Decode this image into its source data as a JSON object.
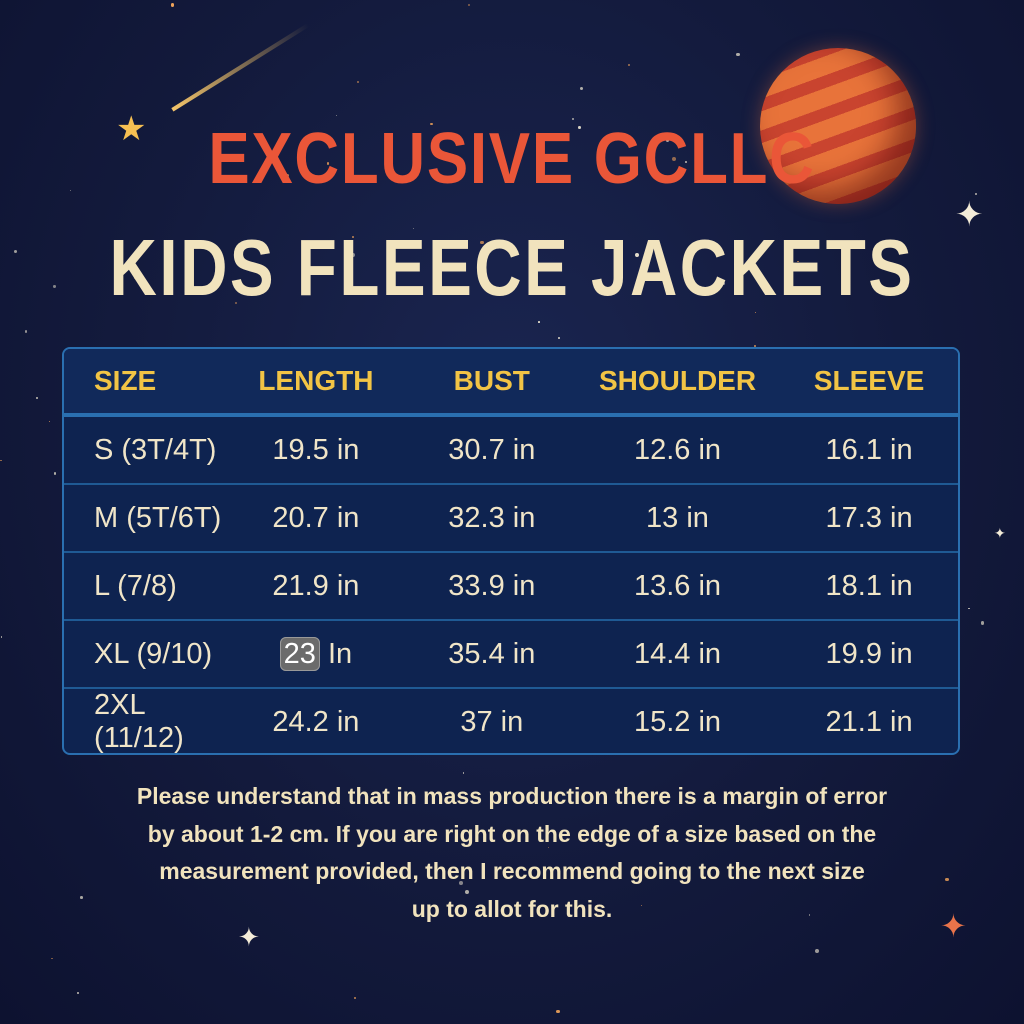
{
  "title": {
    "line1": "EXCLUSIVE GCLLC",
    "line2": "KIDS FLEECE JACKETS"
  },
  "colors": {
    "title_red": "#ea5638",
    "cream": "#f1e3bd",
    "header_gold": "#f2c445",
    "table_bg": "#0e2350",
    "border_blue": "#2a6fb0"
  },
  "table": {
    "headers": [
      "SIZE",
      "LENGTH",
      "BUST",
      "SHOULDER",
      "SLEEVE"
    ],
    "rows": [
      {
        "size": "S (3T/4T)",
        "length": "19.5 in",
        "bust": "30.7 in",
        "shoulder": "12.6 in",
        "sleeve": "16.1 in"
      },
      {
        "size": "M (5T/6T)",
        "length": "20.7 in",
        "bust": "32.3 in",
        "shoulder": "13 in",
        "sleeve": "17.3 in"
      },
      {
        "size": "L (7/8)",
        "length": "21.9 in",
        "bust": "33.9 in",
        "shoulder": "13.6 in",
        "sleeve": "18.1 in"
      },
      {
        "size": "XL (9/10)",
        "length_num": "23",
        "length_unit": "In",
        "bust": "35.4 in",
        "shoulder": "14.4 in",
        "sleeve": "19.9 in"
      },
      {
        "size": "2XL (11/12)",
        "length": "24.2 in",
        "bust": "37 in",
        "shoulder": "15.2 in",
        "sleeve": "21.1 in"
      }
    ]
  },
  "note": {
    "line1": "Please understand that in mass production there is a margin of error",
    "line2": "by about 1-2 cm. If you are right on the edge of a size based on the",
    "line3": "measurement provided, then I recommend going to the next size",
    "line4": "up to allot for this."
  },
  "decor": {
    "planet": "planet-icon",
    "comet": "shooting-star-icon",
    "sparkle": "sparkle-star-icon"
  }
}
